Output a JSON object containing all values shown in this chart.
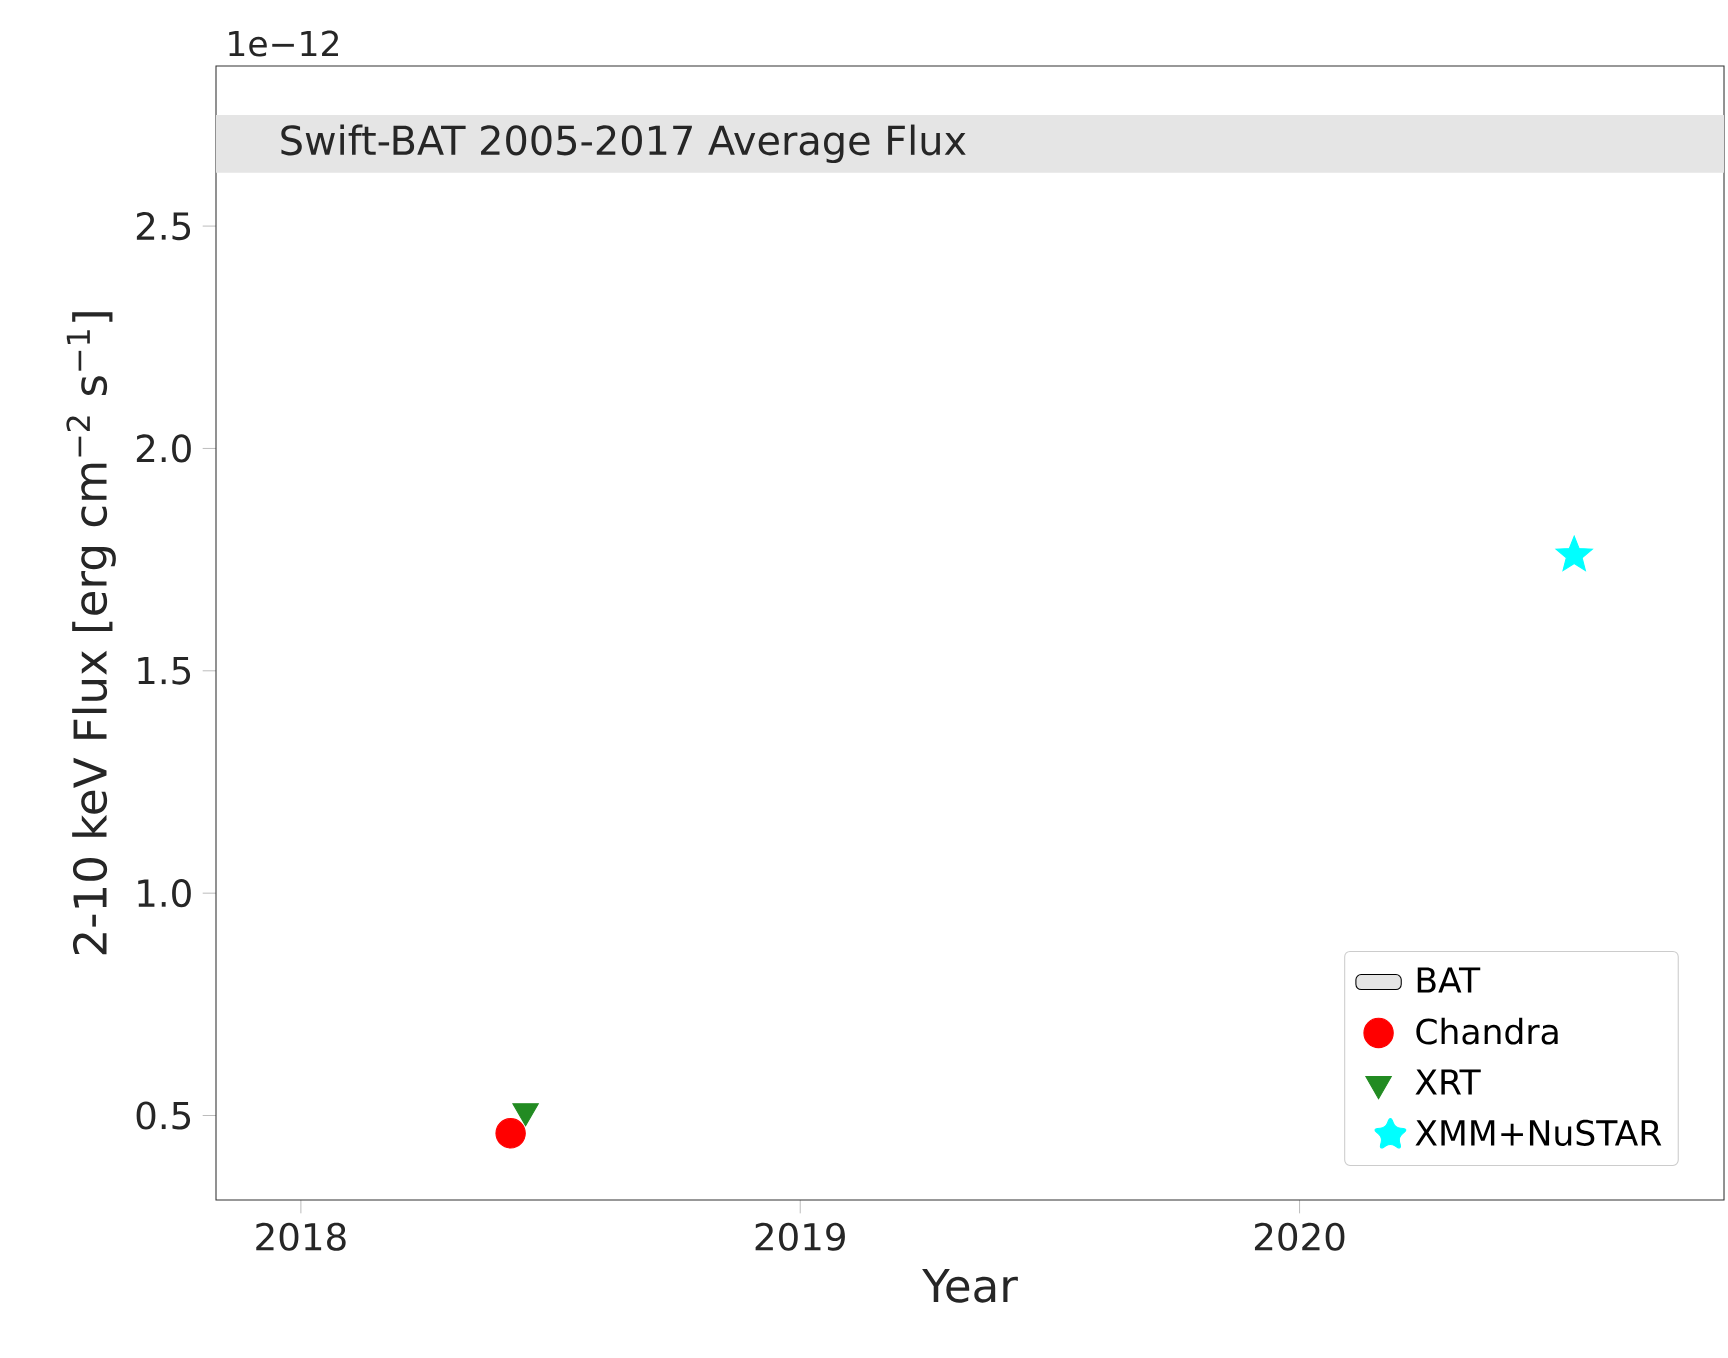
{
  "chart_data": {
    "type": "scatter",
    "xlabel": "Year",
    "ylabel": "2-10 keV Flux [erg cm$^{−2}$ s$^{−1}$]",
    "annotations": [
      "1e−12",
      "Swift-BAT 2005-2017 Average Flux"
    ],
    "xlim": [
      2017.83,
      2020.85
    ],
    "xticks": [
      2018,
      2019,
      2020
    ],
    "ylim": [
      0.31,
      2.86
    ],
    "yticks": [
      0.5,
      {
        "value": 1,
        "label": "1.0"
      },
      1.5,
      {
        "value": 2,
        "label": "2.0"
      },
      2.5
    ],
    "bands": [
      {
        "axis": "y",
        "from": 2.62,
        "to": 2.75,
        "label": "BAT",
        "color": "#e5e5e5"
      }
    ],
    "series": [
      {
        "name": "Chandra",
        "color": "#ff0000",
        "marker": "circle",
        "x": [
          2018.42
        ],
        "values": [
          0.46
        ]
      },
      {
        "name": "XRT",
        "color": "#228b22",
        "marker": "triangle",
        "x": [
          2018.45
        ],
        "values": [
          0.51
        ]
      },
      {
        "name": "XMM+NuSTAR",
        "color": "#00ffff",
        "marker": "star",
        "x": [
          2020.55
        ],
        "values": [
          1.76
        ]
      }
    ],
    "legend": "bottom right",
    "grid": false
  }
}
